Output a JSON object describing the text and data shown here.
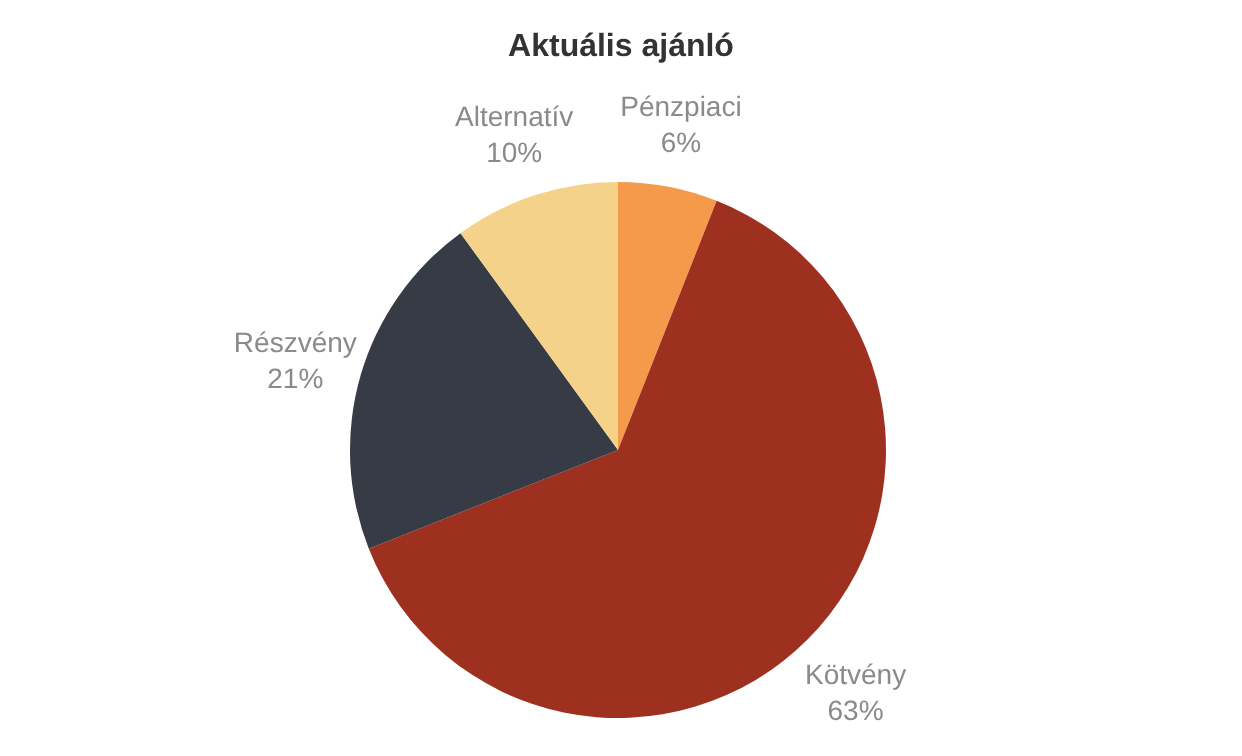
{
  "chart_data": {
    "type": "pie",
    "title": "Aktuális ajánló",
    "categories": [
      "Pénzpiaci",
      "Kötvény",
      "Részvény",
      "Alternatív"
    ],
    "values": [
      6,
      63,
      21,
      10
    ],
    "colors": [
      "#f49a4a",
      "#9e3020",
      "#363b45",
      "#f4d28a"
    ],
    "value_labels": [
      "6%",
      "63%",
      "21%",
      "10%"
    ]
  }
}
